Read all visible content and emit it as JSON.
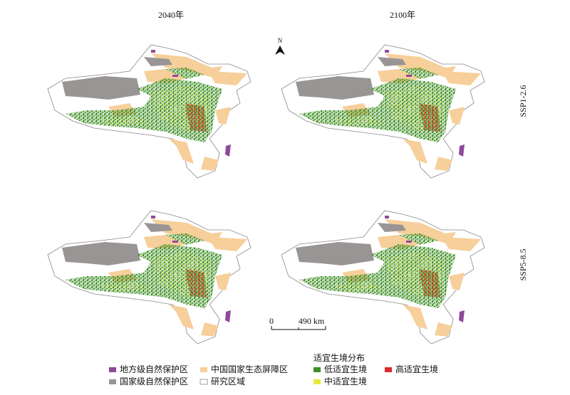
{
  "columns": [
    "2040年",
    "2100年"
  ],
  "rows": [
    "SSP1-2.6",
    "SSP5-8.5"
  ],
  "north": "N",
  "scale": {
    "start": "0",
    "end": "490 km"
  },
  "legend": {
    "title": "适宜生境分布",
    "items": [
      "地方级自然保护区",
      "国家级自然保护区",
      "中国国家生态屏障区",
      "研究区域",
      "低适宜生境",
      "中适宜生境",
      "高适宜生境"
    ]
  }
}
